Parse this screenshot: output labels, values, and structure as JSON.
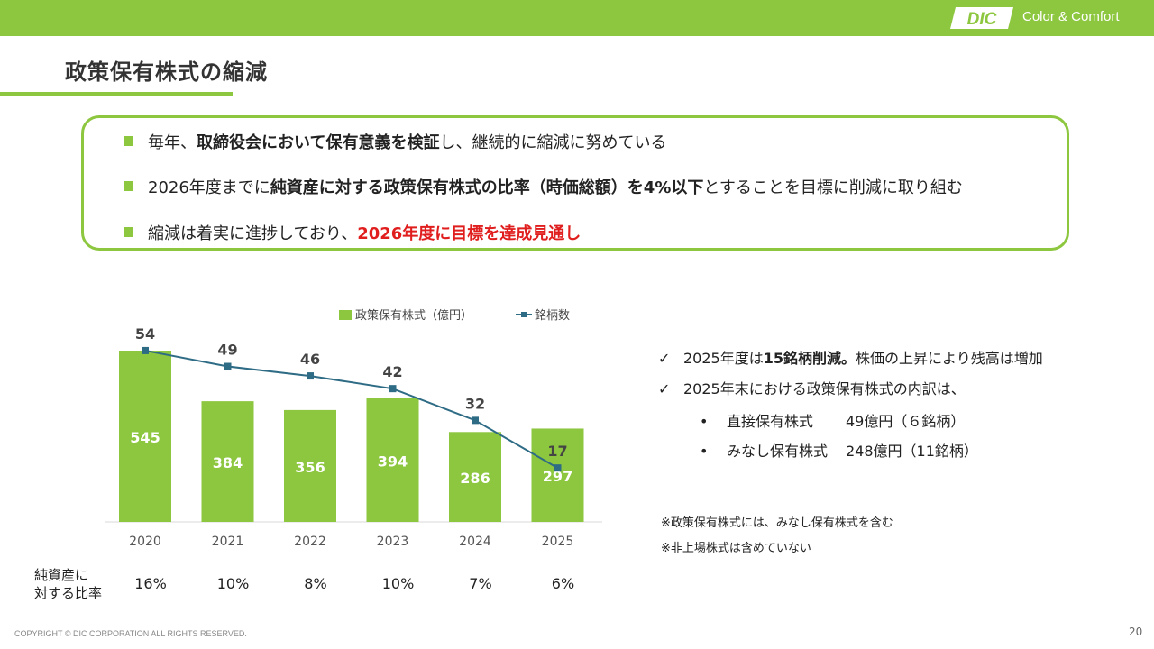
{
  "header": {
    "brand_logo_text": "DIC",
    "tagline": "Color & Comfort"
  },
  "page_title": "政策保有株式の縮減",
  "summary": {
    "line1_pre": "毎年、",
    "line1_bold": "取締役会において保有意義を検証",
    "line1_post": "し、継続的に縮減に努めている",
    "line2_pre": "2026年度までに",
    "line2_bold": "純資産に対する政策保有株式の比率（時価総額）を4%以下",
    "line2_post": "とすることを目標に削減に取り組む",
    "line3_pre": "縮減は着実に進捗しており、",
    "line3_red": "2026年度に目標を達成見通し"
  },
  "chart_data": {
    "type": "bar",
    "categories": [
      "2020",
      "2021",
      "2022",
      "2023",
      "2024",
      "2025"
    ],
    "series": [
      {
        "name": "政策保有株式（億円）",
        "type": "bar",
        "values": [
          545,
          384,
          356,
          394,
          286,
          297
        ]
      },
      {
        "name": "銘柄数",
        "type": "line",
        "values": [
          54,
          49,
          46,
          42,
          32,
          17
        ]
      }
    ],
    "legend": [
      "政策保有株式（億円）",
      "銘柄数"
    ],
    "legend_position": "top",
    "colors": {
      "bar": "#8dc63f",
      "line": "#2e6b85"
    }
  },
  "ratio": {
    "label_line1": "純資産に",
    "label_line2": "対する比率",
    "values": [
      "16%",
      "10%",
      "8%",
      "10%",
      "7%",
      "6%"
    ]
  },
  "notes": {
    "check1_pre": "2025年度は",
    "check1_bold": "15銘柄削減。",
    "check1_post": "株価の上昇により残高は増加",
    "check2": "2025年末における政策保有株式の内訳は、",
    "bullet1_name": "直接保有株式",
    "bullet1_value": "49億円（６銘柄）",
    "bullet2_name": "みなし保有株式",
    "bullet2_value": "248億円（11銘柄）",
    "footnote1": "※政策保有株式には、みなし保有株式を含む",
    "footnote2": "※非上場株式は含めていない"
  },
  "footer": {
    "copyright": "COPYRIGHT © DIC CORPORATION ALL RIGHTS RESERVED.",
    "page_number": "20"
  }
}
